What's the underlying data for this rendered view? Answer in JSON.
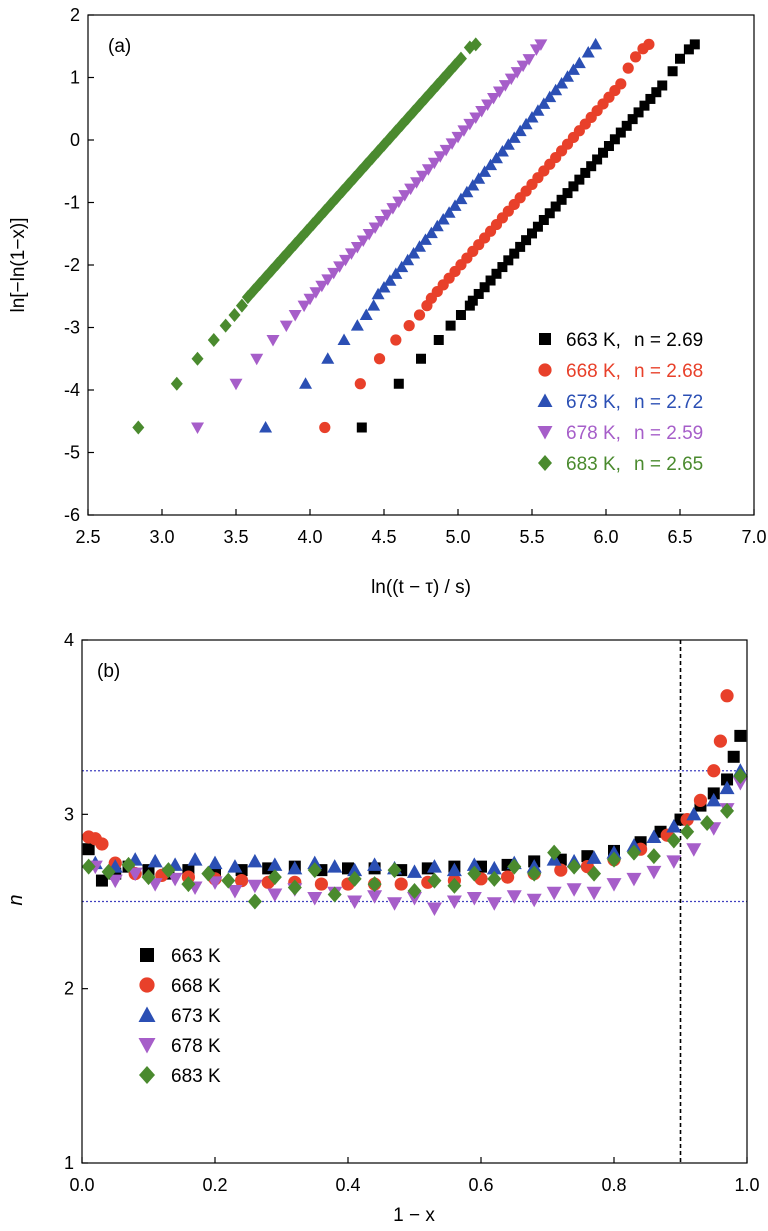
{
  "chart_data": [
    {
      "type": "scatter",
      "panel_label": "(a)",
      "xlabel": "ln((t − τ) / s)",
      "ylabel": "ln[−ln(1−x)]",
      "xlim": [
        2.5,
        7.0
      ],
      "ylim": [
        -6,
        2
      ],
      "xticks": [
        "2.5",
        "3.0",
        "3.5",
        "4.0",
        "4.5",
        "5.0",
        "5.5",
        "6.0",
        "6.5",
        "7.0"
      ],
      "yticks": [
        "-6",
        "-5",
        "-4",
        "-3",
        "-2",
        "-1",
        "0",
        "1",
        "2"
      ],
      "grid": false,
      "legend_position": "bottom-right",
      "series": [
        {
          "name": "663 K,",
          "n_text": "n = 2.69",
          "color": "#000000",
          "marker": "square",
          "points": [
            [
              4.35,
              -4.6
            ],
            [
              4.6,
              -3.9
            ],
            [
              4.75,
              -3.5
            ],
            [
              4.87,
              -3.2
            ],
            [
              4.95,
              -2.97
            ],
            [
              5.02,
              -2.8
            ],
            [
              5.08,
              -2.65
            ]
          ],
          "line": {
            "x_start": 5.1,
            "x_end": 6.4,
            "slope": 2.69,
            "intercept": -16.29,
            "step": 0.04
          },
          "tail": [
            [
              6.45,
              1.1
            ],
            [
              6.5,
              1.3
            ],
            [
              6.56,
              1.45
            ],
            [
              6.6,
              1.53
            ]
          ]
        },
        {
          "name": "668 K,",
          "n_text": "n = 2.68",
          "color": "#e8402a",
          "marker": "circle",
          "points": [
            [
              4.1,
              -4.6
            ],
            [
              4.34,
              -3.9
            ],
            [
              4.47,
              -3.5
            ],
            [
              4.58,
              -3.2
            ],
            [
              4.67,
              -2.97
            ],
            [
              4.74,
              -2.8
            ],
            [
              4.79,
              -2.65
            ]
          ],
          "line": {
            "x_start": 4.82,
            "x_end": 6.1,
            "slope": 2.68,
            "intercept": -15.45,
            "step": 0.04
          },
          "tail": [
            [
              6.15,
              1.15
            ],
            [
              6.2,
              1.33
            ],
            [
              6.25,
              1.46
            ],
            [
              6.29,
              1.53
            ]
          ]
        },
        {
          "name": "673 K,",
          "n_text": "n = 2.72",
          "color": "#2b4fb4",
          "marker": "triangle-up",
          "points": [
            [
              3.7,
              -4.6
            ],
            [
              3.97,
              -3.9
            ],
            [
              4.12,
              -3.5
            ],
            [
              4.23,
              -3.2
            ],
            [
              4.32,
              -2.97
            ],
            [
              4.38,
              -2.8
            ],
            [
              4.43,
              -2.65
            ]
          ],
          "line": {
            "x_start": 4.46,
            "x_end": 5.85,
            "slope": 2.72,
            "intercept": -14.6,
            "step": 0.04
          },
          "tail": [
            [
              5.88,
              1.4
            ],
            [
              5.93,
              1.53
            ]
          ]
        },
        {
          "name": "678 K,",
          "n_text": "n = 2.59",
          "color": "#a65ec9",
          "marker": "triangle-down",
          "points": [
            [
              3.24,
              -4.6
            ],
            [
              3.5,
              -3.9
            ],
            [
              3.64,
              -3.5
            ],
            [
              3.75,
              -3.2
            ],
            [
              3.84,
              -2.97
            ],
            [
              3.9,
              -2.8
            ],
            [
              3.96,
              -2.65
            ]
          ],
          "line": {
            "x_start": 4.0,
            "x_end": 5.5,
            "slope": 2.59,
            "intercept": -12.9,
            "step": 0.04
          },
          "tail": [
            [
              5.53,
              1.45
            ],
            [
              5.56,
              1.53
            ]
          ]
        },
        {
          "name": "683 K,",
          "n_text": "n = 2.65",
          "color": "#4a8a2e",
          "marker": "diamond",
          "points": [
            [
              2.84,
              -4.6
            ],
            [
              3.1,
              -3.9
            ],
            [
              3.24,
              -3.5
            ],
            [
              3.35,
              -3.2
            ],
            [
              3.43,
              -2.97
            ],
            [
              3.49,
              -2.8
            ],
            [
              3.54,
              -2.65
            ]
          ],
          "line": {
            "x_start": 3.58,
            "x_end": 5.05,
            "slope": 2.65,
            "intercept": -12.0,
            "step": 0.04
          },
          "tail": [
            [
              5.08,
              1.48
            ],
            [
              5.12,
              1.53
            ]
          ]
        }
      ]
    },
    {
      "type": "scatter",
      "panel_label": "(b)",
      "xlabel": "1 − x",
      "ylabel": "n",
      "xlim": [
        0.0,
        1.0
      ],
      "ylim": [
        1,
        4
      ],
      "xticks": [
        "0.0",
        "0.2",
        "0.4",
        "0.6",
        "0.8",
        "1.0"
      ],
      "yticks": [
        "1",
        "2",
        "3",
        "4"
      ],
      "grid": false,
      "legend_position": "bottom-left",
      "reference_lines": [
        {
          "orientation": "horizontal",
          "value": 3.25,
          "style": "dotted",
          "color": "#4040c0"
        },
        {
          "orientation": "horizontal",
          "value": 2.5,
          "style": "dotted",
          "color": "#4040c0"
        },
        {
          "orientation": "vertical",
          "value": 0.9,
          "style": "dashed",
          "color": "#000000"
        }
      ],
      "series": [
        {
          "name": "663 K",
          "color": "#000000",
          "marker": "square",
          "points": [
            [
              0.01,
              2.8
            ],
            [
              0.03,
              2.62
            ],
            [
              0.05,
              2.66
            ],
            [
              0.07,
              2.7
            ],
            [
              0.1,
              2.68
            ],
            [
              0.13,
              2.66
            ],
            [
              0.16,
              2.68
            ],
            [
              0.2,
              2.67
            ],
            [
              0.24,
              2.68
            ],
            [
              0.28,
              2.69
            ],
            [
              0.32,
              2.7
            ],
            [
              0.36,
              2.68
            ],
            [
              0.4,
              2.69
            ],
            [
              0.44,
              2.69
            ],
            [
              0.48,
              2.68
            ],
            [
              0.52,
              2.69
            ],
            [
              0.56,
              2.7
            ],
            [
              0.6,
              2.7
            ],
            [
              0.64,
              2.71
            ],
            [
              0.68,
              2.73
            ],
            [
              0.72,
              2.74
            ],
            [
              0.76,
              2.76
            ],
            [
              0.8,
              2.79
            ],
            [
              0.84,
              2.84
            ],
            [
              0.87,
              2.9
            ],
            [
              0.9,
              2.97
            ],
            [
              0.93,
              3.05
            ],
            [
              0.95,
              3.12
            ],
            [
              0.97,
              3.2
            ],
            [
              0.98,
              3.33
            ],
            [
              0.99,
              3.45
            ]
          ]
        },
        {
          "name": "668 K",
          "color": "#e8402a",
          "marker": "circle",
          "points": [
            [
              0.01,
              2.87
            ],
            [
              0.02,
              2.86
            ],
            [
              0.03,
              2.83
            ],
            [
              0.05,
              2.72
            ],
            [
              0.08,
              2.66
            ],
            [
              0.12,
              2.65
            ],
            [
              0.16,
              2.64
            ],
            [
              0.2,
              2.63
            ],
            [
              0.24,
              2.62
            ],
            [
              0.28,
              2.61
            ],
            [
              0.32,
              2.61
            ],
            [
              0.36,
              2.6
            ],
            [
              0.4,
              2.6
            ],
            [
              0.44,
              2.6
            ],
            [
              0.48,
              2.6
            ],
            [
              0.52,
              2.61
            ],
            [
              0.56,
              2.62
            ],
            [
              0.6,
              2.63
            ],
            [
              0.64,
              2.64
            ],
            [
              0.68,
              2.66
            ],
            [
              0.72,
              2.68
            ],
            [
              0.76,
              2.7
            ],
            [
              0.8,
              2.74
            ],
            [
              0.84,
              2.8
            ],
            [
              0.88,
              2.88
            ],
            [
              0.91,
              2.97
            ],
            [
              0.93,
              3.08
            ],
            [
              0.95,
              3.25
            ],
            [
              0.96,
              3.42
            ],
            [
              0.97,
              3.68
            ]
          ]
        },
        {
          "name": "673 K",
          "color": "#2b4fb4",
          "marker": "triangle-up",
          "points": [
            [
              0.02,
              2.72
            ],
            [
              0.05,
              2.7
            ],
            [
              0.08,
              2.74
            ],
            [
              0.11,
              2.73
            ],
            [
              0.14,
              2.71
            ],
            [
              0.17,
              2.74
            ],
            [
              0.2,
              2.72
            ],
            [
              0.23,
              2.7
            ],
            [
              0.26,
              2.73
            ],
            [
              0.29,
              2.71
            ],
            [
              0.32,
              2.69
            ],
            [
              0.35,
              2.72
            ],
            [
              0.38,
              2.7
            ],
            [
              0.41,
              2.68
            ],
            [
              0.44,
              2.71
            ],
            [
              0.47,
              2.69
            ],
            [
              0.5,
              2.67
            ],
            [
              0.53,
              2.7
            ],
            [
              0.56,
              2.68
            ],
            [
              0.59,
              2.71
            ],
            [
              0.62,
              2.69
            ],
            [
              0.65,
              2.72
            ],
            [
              0.68,
              2.7
            ],
            [
              0.71,
              2.74
            ],
            [
              0.74,
              2.73
            ],
            [
              0.77,
              2.75
            ],
            [
              0.8,
              2.78
            ],
            [
              0.83,
              2.82
            ],
            [
              0.86,
              2.87
            ],
            [
              0.89,
              2.93
            ],
            [
              0.92,
              3.0
            ],
            [
              0.95,
              3.08
            ],
            [
              0.97,
              3.15
            ],
            [
              0.99,
              3.25
            ]
          ]
        },
        {
          "name": "678 K",
          "color": "#a65ec9",
          "marker": "triangle-down",
          "points": [
            [
              0.02,
              2.7
            ],
            [
              0.05,
              2.62
            ],
            [
              0.08,
              2.66
            ],
            [
              0.11,
              2.6
            ],
            [
              0.14,
              2.63
            ],
            [
              0.17,
              2.58
            ],
            [
              0.2,
              2.61
            ],
            [
              0.23,
              2.56
            ],
            [
              0.26,
              2.59
            ],
            [
              0.29,
              2.54
            ],
            [
              0.32,
              2.57
            ],
            [
              0.35,
              2.52
            ],
            [
              0.38,
              2.55
            ],
            [
              0.41,
              2.5
            ],
            [
              0.44,
              2.53
            ],
            [
              0.47,
              2.49
            ],
            [
              0.5,
              2.52
            ],
            [
              0.53,
              2.46
            ],
            [
              0.56,
              2.5
            ],
            [
              0.59,
              2.52
            ],
            [
              0.62,
              2.49
            ],
            [
              0.65,
              2.53
            ],
            [
              0.68,
              2.51
            ],
            [
              0.71,
              2.55
            ],
            [
              0.74,
              2.57
            ],
            [
              0.77,
              2.55
            ],
            [
              0.8,
              2.6
            ],
            [
              0.83,
              2.63
            ],
            [
              0.86,
              2.67
            ],
            [
              0.89,
              2.73
            ],
            [
              0.92,
              2.8
            ],
            [
              0.95,
              2.92
            ],
            [
              0.97,
              3.03
            ],
            [
              0.99,
              3.18
            ]
          ]
        },
        {
          "name": "683 K",
          "color": "#4a8a2e",
          "marker": "diamond",
          "points": [
            [
              0.01,
              2.7
            ],
            [
              0.04,
              2.67
            ],
            [
              0.07,
              2.71
            ],
            [
              0.1,
              2.64
            ],
            [
              0.13,
              2.68
            ],
            [
              0.16,
              2.6
            ],
            [
              0.19,
              2.66
            ],
            [
              0.22,
              2.62
            ],
            [
              0.26,
              2.5
            ],
            [
              0.29,
              2.64
            ],
            [
              0.32,
              2.58
            ],
            [
              0.35,
              2.68
            ],
            [
              0.38,
              2.54
            ],
            [
              0.41,
              2.63
            ],
            [
              0.44,
              2.6
            ],
            [
              0.47,
              2.68
            ],
            [
              0.5,
              2.56
            ],
            [
              0.53,
              2.62
            ],
            [
              0.56,
              2.59
            ],
            [
              0.59,
              2.66
            ],
            [
              0.62,
              2.63
            ],
            [
              0.65,
              2.7
            ],
            [
              0.68,
              2.66
            ],
            [
              0.71,
              2.78
            ],
            [
              0.74,
              2.7
            ],
            [
              0.77,
              2.66
            ],
            [
              0.8,
              2.74
            ],
            [
              0.83,
              2.78
            ],
            [
              0.86,
              2.76
            ],
            [
              0.89,
              2.85
            ],
            [
              0.91,
              2.9
            ],
            [
              0.94,
              2.95
            ],
            [
              0.97,
              3.02
            ],
            [
              0.99,
              3.22
            ]
          ]
        }
      ]
    }
  ]
}
